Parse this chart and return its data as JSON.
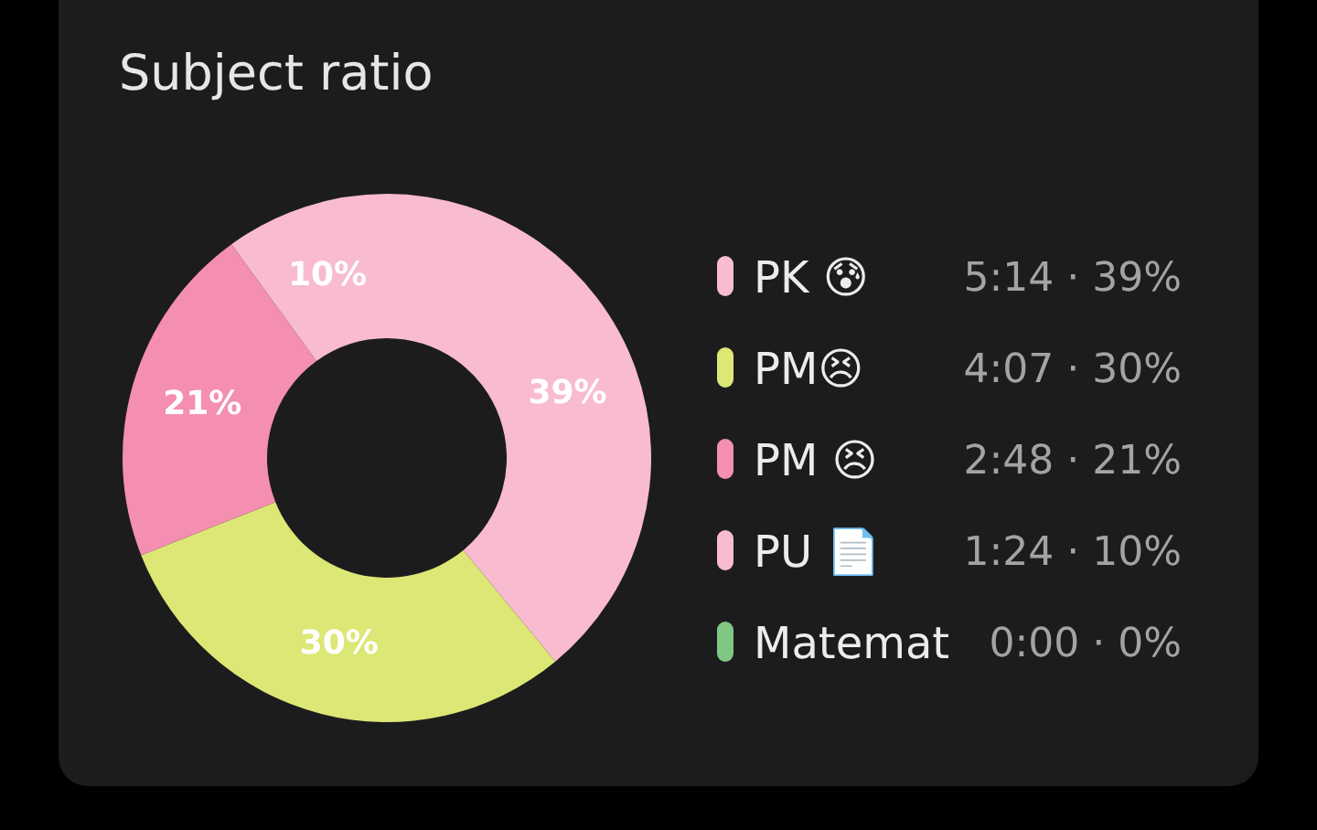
{
  "chart_data": {
    "type": "donut",
    "title": "Subject ratio",
    "categories": [
      "PK 😰",
      "PM😣",
      "PM 😣",
      "PU 📄",
      "Matemat"
    ],
    "values": [
      39,
      30,
      21,
      10,
      0
    ],
    "colors": [
      "#f8bbd0",
      "#dce775",
      "#f48fb1",
      "#f8bbd0",
      "#81c784"
    ],
    "value_labels": [
      "39%",
      "30%",
      "21%",
      "10%",
      null
    ],
    "annotations": [
      "5:14 · 39%",
      "4:07 · 30%",
      "2:48 · 21%",
      "1:24 · 10%",
      "0:00 · 0%"
    ],
    "legend": "right"
  }
}
